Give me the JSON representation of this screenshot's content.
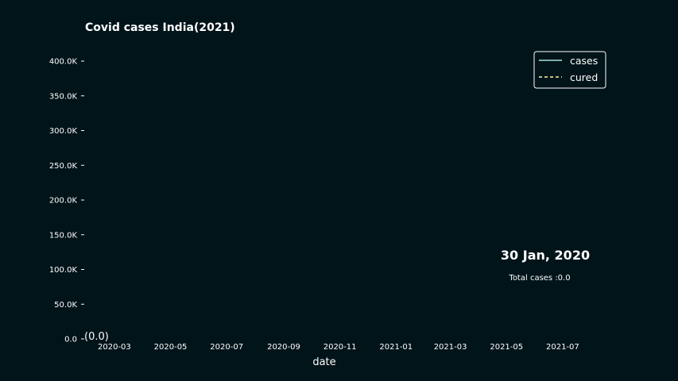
{
  "chart_data": {
    "type": "line",
    "title": "Covid cases India(2021)",
    "xlabel": "date",
    "ylabel": "",
    "ylim": [
      0,
      400000
    ],
    "xlim": [
      "2020-01-30",
      "2021-08-15"
    ],
    "y_ticks": [
      {
        "value": 0,
        "label": "0.0"
      },
      {
        "value": 50000,
        "label": "50.0K"
      },
      {
        "value": 100000,
        "label": "100.0K"
      },
      {
        "value": 150000,
        "label": "150.0K"
      },
      {
        "value": 200000,
        "label": "200.0K"
      },
      {
        "value": 250000,
        "label": "250.0K"
      },
      {
        "value": 300000,
        "label": "300.0K"
      },
      {
        "value": 350000,
        "label": "350.0K"
      },
      {
        "value": 400000,
        "label": "400.0K"
      }
    ],
    "x_ticks": [
      "2020-03",
      "2020-05",
      "2020-07",
      "2020-09",
      "2020-11",
      "2021-01",
      "2021-03",
      "2021-05",
      "2021-07"
    ],
    "series": [
      {
        "name": "cases",
        "color": "#a6e3d7",
        "style": "solid",
        "points": [
          {
            "x": "2020-01-30",
            "y": 0
          }
        ]
      },
      {
        "name": "cured",
        "color": "#fff7a8",
        "style": "dashed",
        "points": [
          {
            "x": "2020-01-30",
            "y": 0
          }
        ]
      }
    ],
    "point_annotation": "(0.0)",
    "date_annotation": "30 Jan, 2020",
    "total_annotation": "Total cases :0.0",
    "legend_position": "top-right",
    "grid": false
  },
  "colors": {
    "background": "#00141a",
    "text": "#ffffff",
    "legend_border": "#ffffff"
  }
}
